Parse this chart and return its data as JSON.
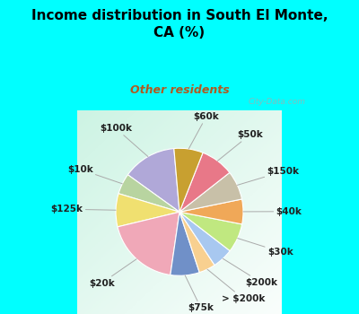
{
  "title": "Income distribution in South El Monte,\nCA (%)",
  "subtitle": "Other residents",
  "title_color": "#000000",
  "subtitle_color": "#b05a20",
  "bg_cyan": "#00ffff",
  "watermark": "City-Data.com",
  "labels": [
    "$100k",
    "$10k",
    "$125k",
    "$20k",
    "$75k",
    "> $200k",
    "$200k",
    "$30k",
    "$40k",
    "$150k",
    "$50k",
    "$60k"
  ],
  "values": [
    13,
    5,
    8,
    18,
    7,
    4,
    5,
    7,
    6,
    7,
    8,
    7
  ],
  "colors": [
    "#b0a8d8",
    "#b8d4a0",
    "#f0e070",
    "#f0a8b8",
    "#7090c8",
    "#f8d090",
    "#a8c8f0",
    "#c0e880",
    "#f0a858",
    "#c8c0a8",
    "#e87888",
    "#c8a030"
  ],
  "startangle": 95,
  "label_fontsize": 7.5,
  "label_color": "#202020"
}
